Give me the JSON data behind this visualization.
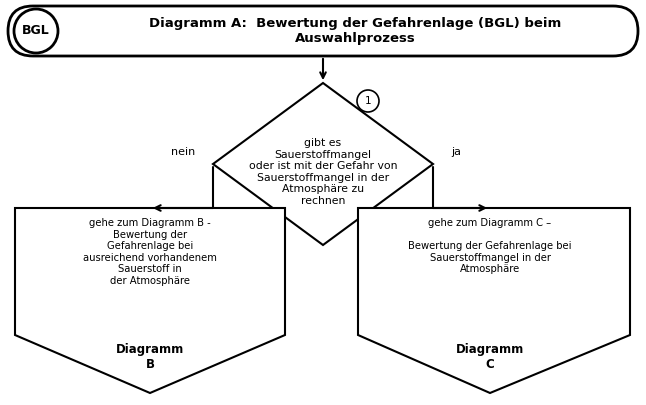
{
  "title_text": "Diagramm A:  Bewertung der Gefahrenlage (BGL) beim\nAuswahlprozess",
  "bgl_label": "BGL",
  "diamond_text": "gibt es\nSauerstoffmangel\noder ist mit der Gefahr von\nSauerstoffmangel in der\nAtmosphäre zu\nrechnen",
  "circle_label": "1",
  "nein_label": "nein",
  "ja_label": "ja",
  "left_box_text": "gehe zum Diagramm B -\nBewertung der\nGefahrenlage bei\nausreichend vorhandenem\nSauerstoff in\nder Atmosphäre",
  "left_box_bold": "Diagramm\nB",
  "right_box_text": "gehe zum Diagramm C –\n\nBewertung der Gefahrenlage bei\nSauerstoffmangel in der\nAtmosphäre",
  "right_box_bold": "Diagramm\nC",
  "bg_color": "#ffffff",
  "box_fill": "#ffffff",
  "box_edge": "#000000",
  "line_color": "#000000",
  "title_fontsize": 9.5,
  "label_fontsize": 8,
  "body_fontsize": 7.2,
  "bold_fontsize": 8.5,
  "diamond_fontsize": 7.8
}
